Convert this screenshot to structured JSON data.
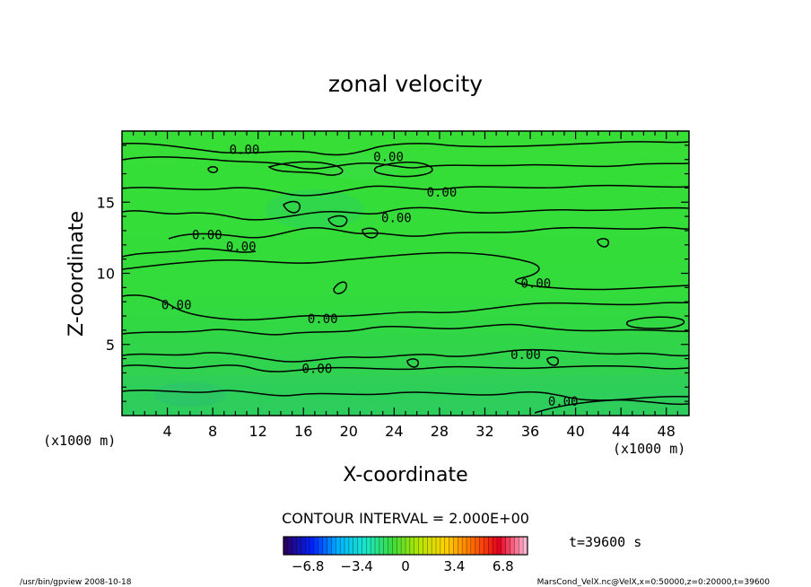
{
  "chart_data": {
    "type": "heatmap",
    "title": "zonal velocity",
    "xlabel": "X-coordinate",
    "ylabel": "Z-coordinate",
    "x_unit_left": "(x1000 m)",
    "x_unit_right": "(x1000 m)",
    "xlim": [
      0,
      50
    ],
    "ylim": [
      0,
      20
    ],
    "x_ticks": [
      4,
      8,
      12,
      16,
      20,
      24,
      28,
      32,
      36,
      40,
      44,
      48
    ],
    "y_ticks": [
      5,
      10,
      15
    ],
    "contour_label": "0.00",
    "contour_labels": [
      {
        "x": 10.8,
        "y": 18.7
      },
      {
        "x": 23.5,
        "y": 18.2
      },
      {
        "x": 28.2,
        "y": 15.7
      },
      {
        "x": 24.2,
        "y": 13.9
      },
      {
        "x": 7.5,
        "y": 12.7
      },
      {
        "x": 10.5,
        "y": 11.9
      },
      {
        "x": 36.5,
        "y": 9.3
      },
      {
        "x": 4.8,
        "y": 7.8
      },
      {
        "x": 17.7,
        "y": 6.8
      },
      {
        "x": 35.6,
        "y": 4.3
      },
      {
        "x": 17.2,
        "y": 3.3
      },
      {
        "x": 38.9,
        "y": 1.0
      }
    ],
    "contour_interval_text": "CONTOUR INTERVAL = 2.000E+00",
    "contour_interval": 2.0,
    "colorbar": {
      "ticks": [
        "−6.8",
        "−3.4",
        "0",
        "3.4",
        "6.8"
      ],
      "min": -8.5,
      "max": 8.5,
      "colors": [
        "#2a0066",
        "#0022ff",
        "#00b4ff",
        "#19e6c8",
        "#3cdc3c",
        "#b4e600",
        "#ffd200",
        "#ff6e00",
        "#e6001e",
        "#ffb4d2"
      ]
    },
    "field_colors": {
      "base": "#33dc3a",
      "low_band": "#2ecf5c",
      "high_band": "#3be048"
    },
    "time_label": "t=39600 s",
    "grid": false
  },
  "footer": {
    "left": "/usr/bin/gpview   2008-10-18",
    "right": "MarsCond_VelX.nc@VelX,x=0:50000,z=0:20000,t=39600"
  }
}
